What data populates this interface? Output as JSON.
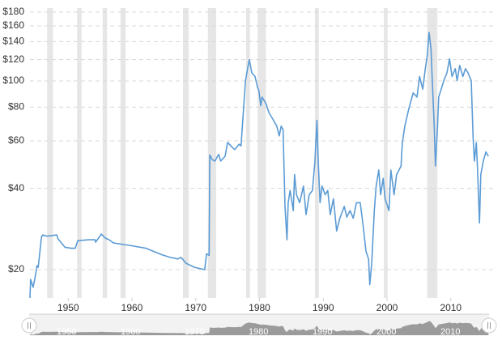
{
  "chart_data": {
    "type": "line",
    "log_scale": true,
    "grid": true,
    "color": "#5b9bd5",
    "recession_color": "#e6e6e6",
    "xlim": [
      1944,
      2016
    ],
    "ylim": [
      15.7,
      180
    ],
    "xticks": [
      1950,
      1960,
      1970,
      1980,
      1990,
      2000,
      2010
    ],
    "yticks": [
      {
        "value": 20,
        "label": "$20"
      },
      {
        "value": 40,
        "label": "$40"
      },
      {
        "value": 60,
        "label": "$60"
      },
      {
        "value": 80,
        "label": "$80"
      },
      {
        "value": 100,
        "label": "$100"
      },
      {
        "value": 120,
        "label": "$120"
      },
      {
        "value": 140,
        "label": "$140"
      },
      {
        "value": 160,
        "label": "$160"
      },
      {
        "value": 180,
        "label": "$180"
      }
    ],
    "recessions": [
      [
        1946.7,
        1947.6
      ],
      [
        1951.4,
        1952.1
      ],
      [
        1955.4,
        1956.1
      ],
      [
        1958.2,
        1959.0
      ],
      [
        1968.0,
        1968.9
      ],
      [
        1971.9,
        1973.2
      ],
      [
        1977.9,
        1978.5
      ],
      [
        1979.7,
        1981.0
      ],
      [
        1988.7,
        1989.3
      ],
      [
        1999.5,
        2000.1
      ],
      [
        2006.3,
        2007.9
      ]
    ],
    "x": [
      1944.0,
      1944.1,
      1944.5,
      1944.8,
      1945.1,
      1945.3,
      1945.5,
      1945.8,
      1946.0,
      1946.7,
      1948.2,
      1948.4,
      1949.5,
      1950.5,
      1951.1,
      1951.5,
      1953.3,
      1954.2,
      1954.3,
      1955.2,
      1955.8,
      1956.4,
      1957.1,
      1959.6,
      1962.2,
      1964.7,
      1966.0,
      1967.2,
      1967.7,
      1968.5,
      1969.8,
      1971.4,
      1971.7,
      1972.1,
      1972.2,
      1972.6,
      1973.0,
      1973.6,
      1973.9,
      1974.6,
      1975.0,
      1975.7,
      1976.1,
      1976.8,
      1977.1,
      1977.5,
      1977.8,
      1978.2,
      1978.4,
      1978.8,
      1979.3,
      1979.7,
      1979.9,
      1980.2,
      1980.4,
      1981.0,
      1981.5,
      1982.2,
      1982.7,
      1983.1,
      1983.4,
      1983.7,
      1984.0,
      1984.3,
      1984.5,
      1984.8,
      1985.3,
      1985.5,
      1985.8,
      1986.3,
      1986.9,
      1987.3,
      1987.8,
      1988.3,
      1988.7,
      1989.0,
      1989.2,
      1989.5,
      1989.8,
      1990.3,
      1990.7,
      1991.1,
      1991.6,
      1992.1,
      1992.6,
      1993.3,
      1993.7,
      1994.2,
      1994.7,
      1995.2,
      1995.8,
      1996.2,
      1996.7,
      1997.1,
      1997.3,
      1997.6,
      1998.0,
      1998.3,
      1998.7,
      1999.0,
      1999.4,
      1999.7,
      2000.3,
      2000.6,
      2001.1,
      2001.5,
      2002.2,
      2002.4,
      2002.8,
      2003.4,
      2004.1,
      2004.7,
      2005.1,
      2005.6,
      2006.0,
      2006.3,
      2006.6,
      2006.9,
      2007.1,
      2007.4,
      2007.6,
      2007.9,
      2008.1,
      2008.5,
      2008.9,
      2009.4,
      2009.8,
      2010.2,
      2010.7,
      2011.0,
      2011.4,
      2011.9,
      2012.3,
      2012.7,
      2013.2,
      2013.5,
      2013.7,
      2014.0,
      2014.2,
      2014.5,
      2014.7,
      2015.1,
      2015.5,
      2015.9
    ],
    "values": [
      15.7,
      18.4,
      17.2,
      18.7,
      20.7,
      20.4,
      22.6,
      26.4,
      26.9,
      26.6,
      26.9,
      26.0,
      24.2,
      24.0,
      24.0,
      25.6,
      25.8,
      25.8,
      25.3,
      27.1,
      26.2,
      25.8,
      25.1,
      24.6,
      24.0,
      22.7,
      22.2,
      21.9,
      22.2,
      21.1,
      20.4,
      20.0,
      22.9,
      22.6,
      53.2,
      51.1,
      50.5,
      53.5,
      50.5,
      52.6,
      59.2,
      56.9,
      55.7,
      58.3,
      57.5,
      78.7,
      100.3,
      113.3,
      119.9,
      107.2,
      103.9,
      94.7,
      92.2,
      81.0,
      87.2,
      82.6,
      76.2,
      71.5,
      68.1,
      62.6,
      68.1,
      66.1,
      34.3,
      25.8,
      35.4,
      39.3,
      33.1,
      45.0,
      37.9,
      35.4,
      40.8,
      32.0,
      37.9,
      39.3,
      50.5,
      71.5,
      50.5,
      35.4,
      40.8,
      37.9,
      39.3,
      32.0,
      36.6,
      27.8,
      31.0,
      34.3,
      31.3,
      33.1,
      31.0,
      35.4,
      35.4,
      29.8,
      23.4,
      21.9,
      17.6,
      21.1,
      33.1,
      40.8,
      46.8,
      37.9,
      43.6,
      36.6,
      33.1,
      46.8,
      37.9,
      45.0,
      48.4,
      59.1,
      68.1,
      78.7,
      90.4,
      87.2,
      103.9,
      93.3,
      111.1,
      123.9,
      151.3,
      131.6,
      100.3,
      68.1,
      48.4,
      66.1,
      87.2,
      93.3,
      100.3,
      107.2,
      121.0,
      103.9,
      111.1,
      100.3,
      114.2,
      103.9,
      111.1,
      107.2,
      100.3,
      61.9,
      50.5,
      59.1,
      46.8,
      29.8,
      45.0,
      50.5,
      54.6,
      52.6
    ],
    "navigator": {
      "labels": [
        "1950",
        "1960",
        "1970",
        "1980",
        "1990",
        "2000",
        "2010"
      ],
      "color": "#8c8c8c"
    }
  }
}
